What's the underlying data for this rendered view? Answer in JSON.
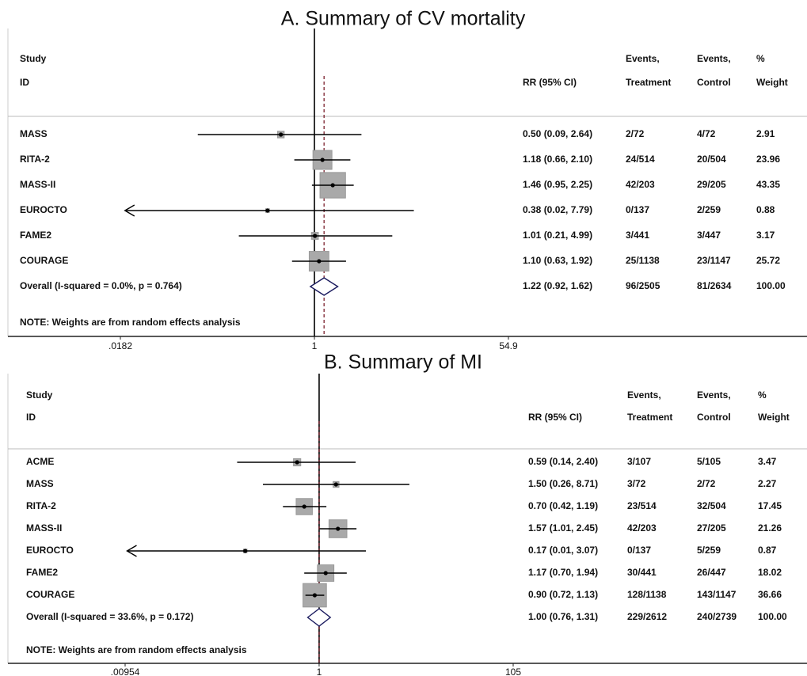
{
  "chart_data": [
    {
      "type": "forest",
      "title": "A. Summary of CV mortality",
      "headers": {
        "study": [
          "Study",
          "ID"
        ],
        "rr": "RR (95% CI)",
        "events_treatment": [
          "Events,",
          "Treatment"
        ],
        "events_control": [
          "Events,",
          "Control"
        ],
        "weight": [
          "%",
          "Weight"
        ]
      },
      "categories": [
        "MASS",
        "RITA-2",
        "MASS-II",
        "EUROCTO",
        "FAME2",
        "COURAGE"
      ],
      "values": [
        0.5,
        1.18,
        1.46,
        0.38,
        1.01,
        1.1
      ],
      "lower": [
        0.09,
        0.66,
        0.95,
        0.02,
        0.21,
        0.63
      ],
      "upper": [
        2.64,
        2.1,
        2.25,
        7.79,
        4.99,
        1.92
      ],
      "value_labels": [
        "0.50 (0.09, 2.64)",
        "1.18 (0.66, 2.10)",
        "1.46 (0.95, 2.25)",
        "0.38 (0.02, 7.79)",
        "1.01 (0.21, 4.99)",
        "1.10 (0.63, 1.92)"
      ],
      "events_treatment": [
        "2/72",
        "24/514",
        "42/203",
        "0/137",
        "3/441",
        "25/1138"
      ],
      "events_control": [
        "4/72",
        "20/504",
        "29/205",
        "2/259",
        "3/447",
        "23/1147"
      ],
      "weights": [
        2.91,
        23.96,
        43.35,
        0.88,
        3.17,
        25.72
      ],
      "overall": {
        "label": "Overall  (I-squared = 0.0%, p = 0.764)",
        "value": 1.22,
        "lower": 0.92,
        "upper": 1.62,
        "value_label": "1.22 (0.92, 1.62)",
        "events_treatment": "96/2505",
        "events_control": "81/2634",
        "weight": {
          "value": 100,
          "label": "100.00"
        }
      },
      "note": "NOTE: Weights are from random effects analysis",
      "xlim": [
        0.0182,
        54.9
      ],
      "xticks": [
        {
          "value": 0.0182,
          "label": ".0182"
        },
        1,
        54.9
      ],
      "log_scale": true,
      "box_color": "#a9a9a9",
      "line_color": "#000000",
      "overall_line_color": "#7a1f2b"
    },
    {
      "type": "forest",
      "title": "B. Summary of MI",
      "headers": {
        "study": [
          "Study",
          "ID"
        ],
        "rr": "RR (95% CI)",
        "events_treatment": [
          "Events,",
          "Treatment"
        ],
        "events_control": [
          "Events,",
          "Control"
        ],
        "weight": [
          "%",
          "Weight"
        ]
      },
      "categories": [
        "ACME",
        "MASS",
        "RITA-2",
        "MASS-II",
        "EUROCTO",
        "FAME2",
        "COURAGE"
      ],
      "values": [
        0.59,
        1.5,
        0.7,
        1.57,
        0.17,
        1.17,
        0.9
      ],
      "lower": [
        0.14,
        0.26,
        0.42,
        1.01,
        0.01,
        0.7,
        0.72
      ],
      "upper": [
        2.4,
        8.71,
        1.19,
        2.45,
        3.07,
        1.94,
        1.13
      ],
      "value_labels": [
        "0.59 (0.14, 2.40)",
        "1.50 (0.26, 8.71)",
        "0.70 (0.42, 1.19)",
        "1.57 (1.01, 2.45)",
        "0.17 (0.01, 3.07)",
        "1.17 (0.70, 1.94)",
        "0.90 (0.72, 1.13)"
      ],
      "events_treatment": [
        "3/107",
        "3/72",
        "23/514",
        "42/203",
        "0/137",
        "30/441",
        "128/1138"
      ],
      "events_control": [
        "5/105",
        "2/72",
        "32/504",
        "27/205",
        "5/259",
        "26/447",
        "143/1147"
      ],
      "weights": [
        3.47,
        2.27,
        17.45,
        21.26,
        0.87,
        18.02,
        36.66
      ],
      "overall": {
        "label": "Overall  (I-squared = 33.6%, p = 0.172)",
        "value": 1.0,
        "lower": 0.76,
        "upper": 1.31,
        "value_label": "1.00 (0.76, 1.31)",
        "events_treatment": "229/2612",
        "events_control": "240/2739",
        "weight": {
          "value": 100,
          "label": "100.00"
        }
      },
      "note": "NOTE: Weights are from random effects analysis",
      "xlim": [
        0.00954,
        105
      ],
      "xticks": [
        {
          "value": 0.00954,
          "label": ".00954"
        },
        1,
        105
      ],
      "log_scale": true,
      "box_color": "#a9a9a9",
      "line_color": "#000000",
      "overall_line_color": "#7a1f2b"
    }
  ]
}
